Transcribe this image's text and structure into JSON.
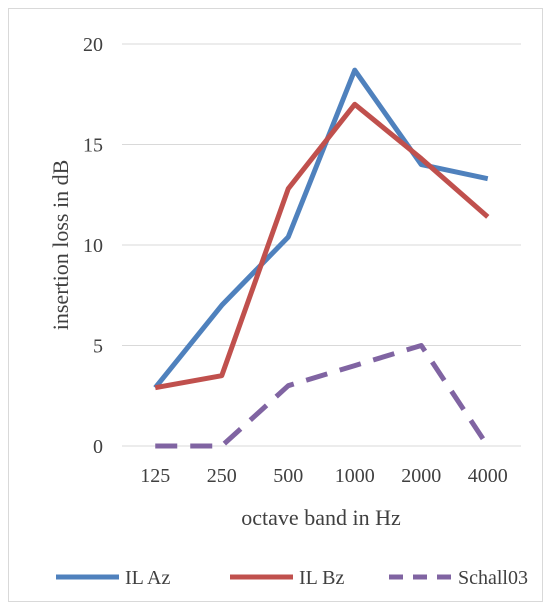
{
  "chart_data": {
    "type": "line",
    "categories": [
      "125",
      "250",
      "500",
      "1000",
      "2000",
      "4000"
    ],
    "series": [
      {
        "name": "IL Az",
        "values": [
          2.9,
          7.0,
          10.4,
          18.7,
          14.0,
          13.3
        ],
        "color": "#4f81bd",
        "dash": "solid"
      },
      {
        "name": "IL Bz",
        "values": [
          2.9,
          3.5,
          12.8,
          17.0,
          14.3,
          11.4
        ],
        "color": "#c0504d",
        "dash": "solid"
      },
      {
        "name": "Schall03",
        "values": [
          0,
          0,
          3.0,
          4.0,
          5.0,
          0
        ],
        "color": "#8064a2",
        "dash": "dashed"
      }
    ],
    "xlabel": "octave band in Hz",
    "ylabel": "insertion loss in dB",
    "ylim": [
      0,
      20
    ],
    "yticks": [
      "0",
      "5",
      "10",
      "15",
      "20"
    ],
    "grid": true,
    "legend_position": "bottom"
  }
}
